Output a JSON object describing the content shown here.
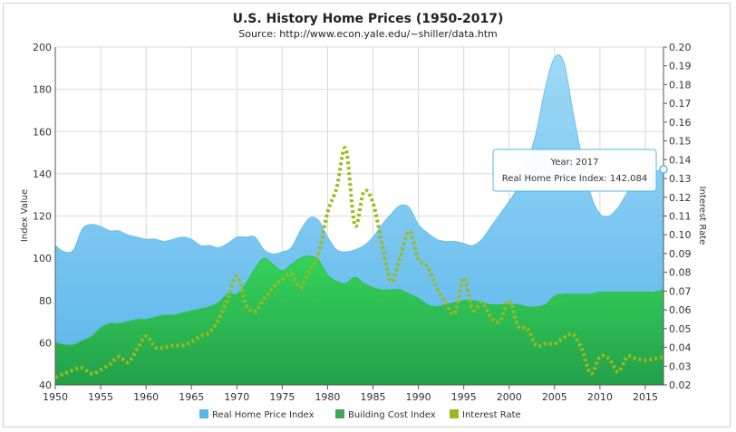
{
  "chart_data": {
    "type": "area",
    "title": "U.S. History Home Prices (1950-2017)",
    "subtitle": "Source: http://www.econ.yale.edu/~shiller/data.htm",
    "ylabel_left": "Index Value",
    "ylabel_right": "Interest Rate",
    "xlim": [
      1950,
      2017
    ],
    "ylim_left": [
      40,
      200
    ],
    "ylim_right": [
      0.02,
      0.2
    ],
    "x_ticks": [
      "1950",
      "1955",
      "1960",
      "1965",
      "1970",
      "1975",
      "1980",
      "1985",
      "1990",
      "1995",
      "2000",
      "2005",
      "2010",
      "2015"
    ],
    "y_left_ticks": [
      "40",
      "60",
      "80",
      "100",
      "120",
      "140",
      "160",
      "180",
      "200"
    ],
    "y_right_ticks": [
      "0.02",
      "0.03",
      "0.04",
      "0.05",
      "0.06",
      "0.07",
      "0.08",
      "0.09",
      "0.10",
      "0.11",
      "0.12",
      "0.13",
      "0.14",
      "0.15",
      "0.16",
      "0.17",
      "0.18",
      "0.19",
      "0.20"
    ],
    "grid": true,
    "legend_position": "bottom",
    "x": [
      1950,
      1951,
      1952,
      1953,
      1954,
      1955,
      1956,
      1957,
      1958,
      1959,
      1960,
      1961,
      1962,
      1963,
      1964,
      1965,
      1966,
      1967,
      1968,
      1969,
      1970,
      1971,
      1972,
      1973,
      1974,
      1975,
      1976,
      1977,
      1978,
      1979,
      1980,
      1981,
      1982,
      1983,
      1984,
      1985,
      1986,
      1987,
      1988,
      1989,
      1990,
      1991,
      1992,
      1993,
      1994,
      1995,
      1996,
      1997,
      1998,
      1999,
      2000,
      2001,
      2002,
      2003,
      2004,
      2005,
      2006,
      2007,
      2008,
      2009,
      2010,
      2011,
      2012,
      2013,
      2014,
      2015,
      2016,
      2017
    ],
    "series": [
      {
        "name": "Real Home Price Index",
        "color": "#7cc8f0",
        "values": [
          106,
          103,
          104,
          114,
          116,
          115,
          113,
          113,
          111,
          110,
          109,
          109,
          108,
          109,
          110,
          109,
          106,
          106,
          105,
          107,
          110,
          110,
          110,
          104,
          102,
          103,
          105,
          113,
          119,
          118,
          110,
          104,
          103,
          104,
          106,
          110,
          116,
          121,
          125,
          124,
          116,
          112,
          109,
          108,
          108,
          107,
          106,
          109,
          115,
          121,
          127,
          134,
          145,
          160,
          181,
          195,
          193,
          170,
          148,
          130,
          121,
          120,
          124,
          131,
          136,
          139,
          141,
          142.084
        ]
      },
      {
        "name": "Building Cost Index",
        "color": "#3cb34a",
        "values": [
          60,
          59,
          59,
          61,
          63,
          67,
          69,
          69,
          70,
          71,
          71,
          72,
          73,
          73,
          74,
          75,
          76,
          77,
          79,
          83,
          83,
          88,
          95,
          100,
          97,
          94,
          97,
          100,
          101,
          99,
          92,
          89,
          88,
          91,
          88,
          86,
          85,
          85,
          85,
          83,
          81,
          78,
          77,
          78,
          79,
          80,
          80,
          79,
          78,
          78,
          78,
          78,
          77,
          77,
          78,
          82,
          83,
          83,
          83,
          83,
          84,
          84,
          84,
          84,
          84,
          84,
          84,
          85
        ]
      },
      {
        "name": "Interest Rate",
        "color": "#9aba1a",
        "values": [
          0.024,
          0.026,
          0.028,
          0.029,
          0.026,
          0.028,
          0.031,
          0.035,
          0.032,
          0.039,
          0.046,
          0.04,
          0.04,
          0.041,
          0.041,
          0.043,
          0.046,
          0.048,
          0.055,
          0.066,
          0.078,
          0.063,
          0.059,
          0.066,
          0.072,
          0.076,
          0.079,
          0.072,
          0.081,
          0.09,
          0.112,
          0.125,
          0.146,
          0.105,
          0.123,
          0.117,
          0.095,
          0.075,
          0.088,
          0.102,
          0.087,
          0.083,
          0.072,
          0.064,
          0.058,
          0.077,
          0.06,
          0.064,
          0.056,
          0.054,
          0.065,
          0.051,
          0.05,
          0.041,
          0.042,
          0.042,
          0.045,
          0.047,
          0.039,
          0.026,
          0.035,
          0.034,
          0.027,
          0.035,
          0.034,
          0.033,
          0.034,
          0.035
        ]
      }
    ],
    "tooltip": {
      "year_label": "Year: 2017",
      "value_label": "Real Home Price Index: 142.084",
      "x": 2017,
      "y": 142.084
    }
  }
}
